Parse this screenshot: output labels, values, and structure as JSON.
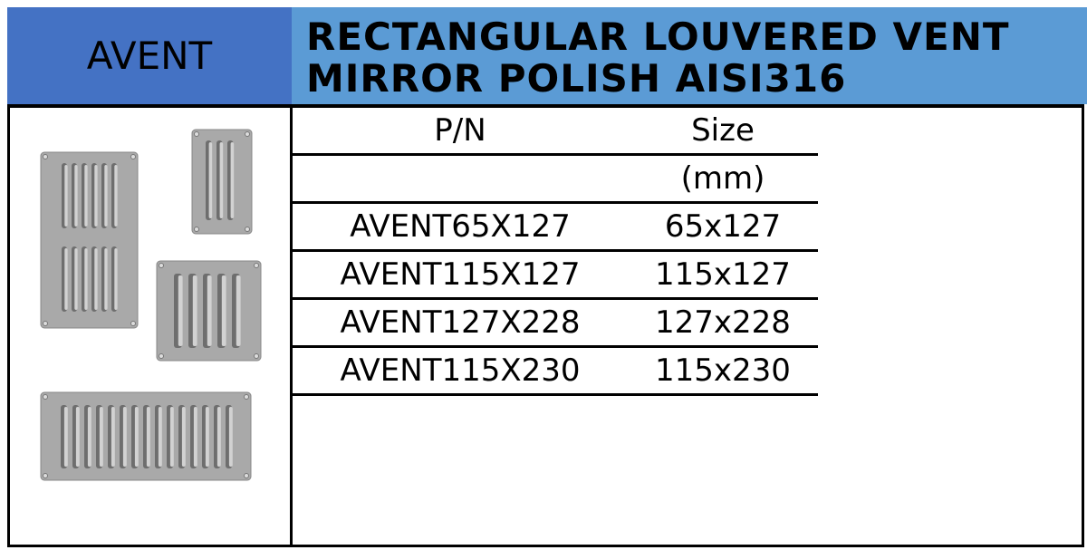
{
  "header": {
    "brand": "AVENT",
    "title_line1": "RECTANGULAR LOUVERED VENT",
    "title_line2": "MIRROR POLISH AISI316"
  },
  "colors": {
    "brand_bg": "#4472c4",
    "title_bg": "#5b9bd5"
  },
  "table": {
    "headers": [
      "P/N",
      "Size"
    ],
    "unit": "(mm)",
    "rows": [
      {
        "pn": "AVENT65X127",
        "size": "65x127"
      },
      {
        "pn": "AVENT115X127",
        "size": "115x127"
      },
      {
        "pn": "AVENT127X228",
        "size": "127x228"
      },
      {
        "pn": "AVENT115X230",
        "size": "115x230"
      }
    ]
  },
  "image": {
    "alt": "stainless louvered vents"
  }
}
